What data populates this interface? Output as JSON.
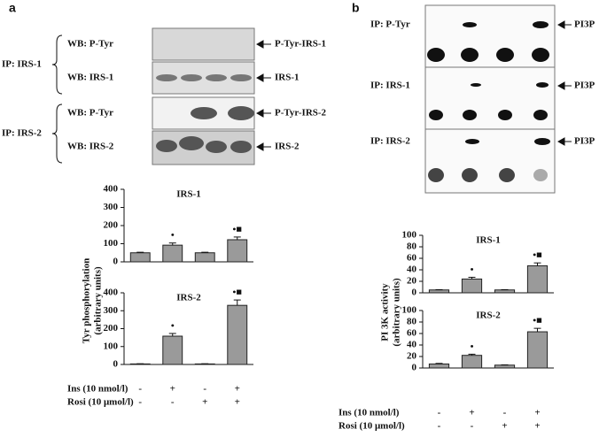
{
  "panel_labels": [
    "a",
    "b"
  ],
  "blots_a": {
    "ip_labels": [
      "IP: IRS-1",
      "IP: IRS-2"
    ],
    "wb_labels": [
      "WB: P-Tyr",
      "WB: IRS-1",
      "WB: P-Tyr",
      "WB: IRS-2"
    ],
    "arrows": [
      "P-Tyr-IRS-1",
      "IRS-1",
      "P-Tyr-IRS-2",
      "IRS-2"
    ]
  },
  "blots_b": {
    "ip_labels": [
      "IP: P-Tyr",
      "IP: IRS-1",
      "IP: IRS-2"
    ],
    "arrows": [
      "PI3P",
      "PI3P",
      "PI3P"
    ]
  },
  "conditions": [
    {
      "label": "Ins (10 nmol/l)",
      "signs": [
        "-",
        "+",
        "-",
        "+"
      ]
    },
    {
      "label": "Rosi (10 μmol/l)",
      "signs": [
        "-",
        "-",
        "+",
        "+"
      ]
    }
  ],
  "chart_data": [
    {
      "type": "bar",
      "title": "IRS-1",
      "ylabel": [
        "Tyr  phosphorylation",
        "(arbitrary units)"
      ],
      "values": [
        50,
        92,
        50,
        122
      ],
      "errors": [
        3,
        12,
        3,
        15
      ],
      "annotations": [
        null,
        "•",
        null,
        "•■"
      ],
      "color": "#9a9a9a",
      "ylim": [
        0,
        400
      ],
      "yticks": [
        0,
        100,
        200,
        300,
        400
      ]
    },
    {
      "type": "bar",
      "title": "IRS-2",
      "values": [
        3,
        158,
        3,
        330
      ],
      "errors": [
        1,
        15,
        1,
        30
      ],
      "annotations": [
        null,
        "•",
        null,
        "•■"
      ],
      "color": "#9a9a9a",
      "ylim": [
        0,
        400
      ],
      "yticks": [
        0,
        100,
        200,
        300,
        400
      ]
    },
    {
      "type": "bar",
      "title": "IRS-1",
      "ylabel": [
        "PI 3K activity",
        "(arbitrary units)"
      ],
      "values": [
        5,
        24,
        5,
        47
      ],
      "errors": [
        0.5,
        3,
        0.5,
        5
      ],
      "annotations": [
        null,
        "•",
        null,
        "•■"
      ],
      "color": "#9a9a9a",
      "ylim": [
        0,
        100
      ],
      "yticks": [
        0,
        20,
        40,
        60,
        80,
        100
      ]
    },
    {
      "type": "bar",
      "title": "IRS-2",
      "values": [
        7,
        22,
        5,
        63
      ],
      "errors": [
        1,
        2,
        0.5,
        6
      ],
      "annotations": [
        null,
        "•",
        null,
        "•■"
      ],
      "color": "#9a9a9a",
      "ylim": [
        0,
        100
      ],
      "yticks": [
        0,
        20,
        40,
        60,
        80,
        100
      ]
    }
  ]
}
